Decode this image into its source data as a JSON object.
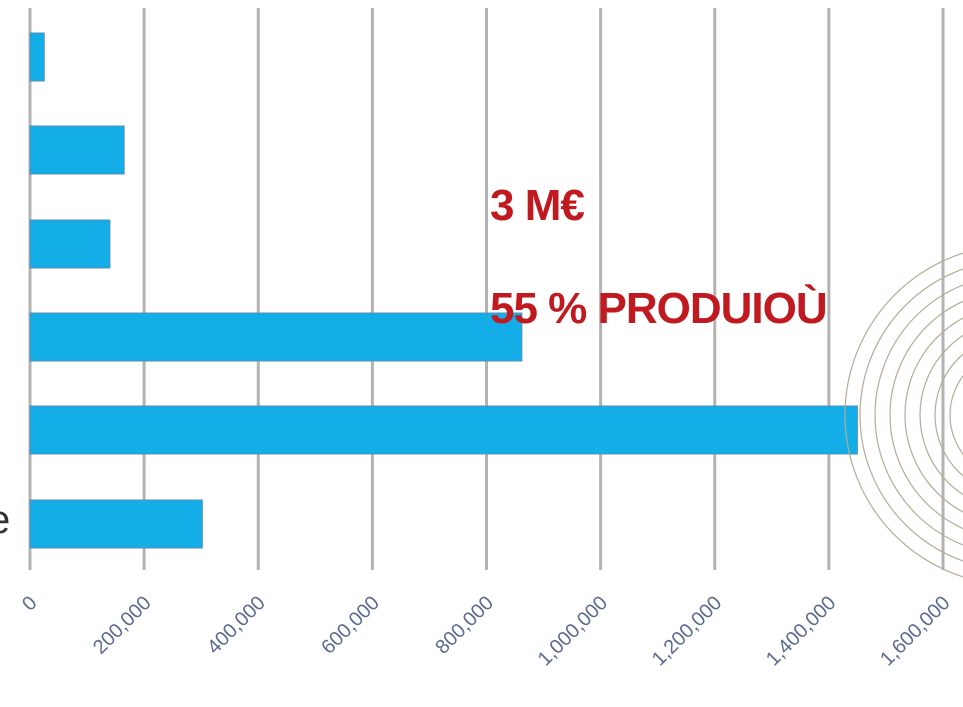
{
  "chart_data": {
    "type": "bar",
    "orientation": "horizontal",
    "categories": [
      "",
      "",
      "",
      "",
      "",
      ""
    ],
    "values": [
      25000,
      165000,
      140000,
      862000,
      1450000,
      302000
    ],
    "xlim": [
      0,
      1600000
    ],
    "xticks": [
      0,
      200000,
      400000,
      600000,
      800000,
      1000000,
      1200000,
      1400000,
      1600000
    ],
    "xtick_labels": [
      "0",
      "200,000",
      "400,000",
      "600,000",
      "800,000",
      "1,000,000",
      "1,200,000",
      "1,400,000",
      "1,600,000"
    ],
    "grid": true,
    "bar_color": "#13aee8",
    "annotations": [
      "3 M€",
      "55 % PRODUIOÙ"
    ],
    "annotation_color": "#c0191f",
    "title": "",
    "xlabel": "",
    "ylabel": ""
  },
  "edge_glyph": "e"
}
